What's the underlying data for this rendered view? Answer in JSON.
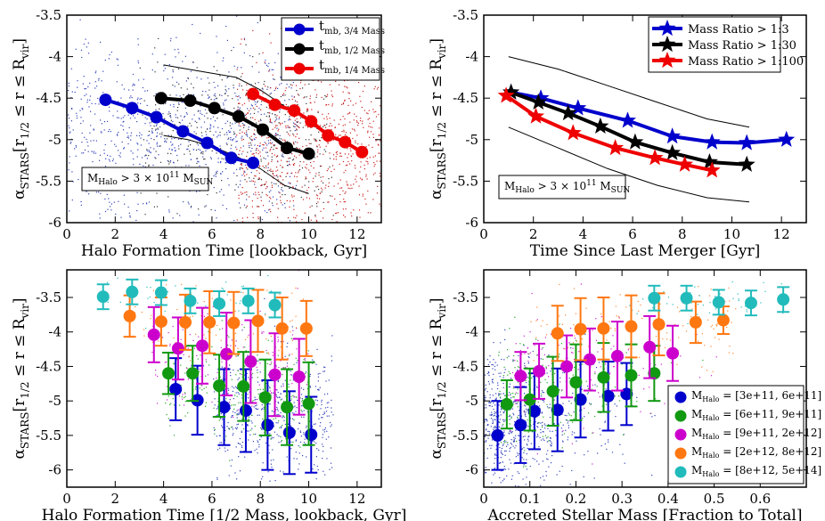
{
  "chart_data": [
    {
      "type": "scatter",
      "panel": "top-left",
      "xlabel": "Halo Formation Time [lookback, Gyr]",
      "ylabel_main": "α",
      "ylabel_sub": "STARS",
      "ylabel_rest": "[r",
      "ylabel_sub2": "1/2",
      "ylabel_mid": " ≤ r ≤ R",
      "ylabel_sub3": "vir",
      "ylabel_end": "]",
      "xlim": [
        0,
        13
      ],
      "ylim": [
        -6,
        -3.5
      ],
      "xticks": [
        "0",
        "2",
        "4",
        "6",
        "8",
        "10",
        "12"
      ],
      "yticks": [
        "-6",
        "-5.5",
        "-5",
        "-4.5",
        "-4",
        "-3.5"
      ],
      "annotation": {
        "main": "M",
        "sub": "Halo",
        "mid": " > 3 × 10",
        "sup": "11",
        "end": " M",
        "sub2": "SUN"
      },
      "series": [
        {
          "name": "t",
          "sub": "mb, 3/4 Mass",
          "color": "#0000cc",
          "x": [
            1.6,
            2.7,
            3.7,
            4.8,
            5.8,
            6.8,
            7.7
          ],
          "y": [
            -4.52,
            -4.62,
            -4.73,
            -4.9,
            -5.04,
            -5.22,
            -5.28
          ]
        },
        {
          "name": "t",
          "sub": "mb, 1/2 Mass",
          "color": "#000000",
          "x": [
            3.9,
            5.1,
            6.1,
            7.1,
            8.1,
            9.1,
            10.0
          ],
          "y": [
            -4.5,
            -4.53,
            -4.62,
            -4.72,
            -4.88,
            -5.1,
            -5.17
          ]
        },
        {
          "name": "t",
          "sub": "mb, 1/4 Mass",
          "color": "#ee0000",
          "x": [
            7.7,
            8.6,
            9.4,
            10.1,
            10.8,
            11.5,
            12.2
          ],
          "y": [
            -4.45,
            -4.58,
            -4.65,
            -4.78,
            -4.95,
            -5.03,
            -5.15
          ]
        }
      ],
      "envelope": [
        {
          "x": [
            4.0,
            5.0,
            6.0,
            7.0,
            8.0,
            9.0,
            10.0
          ],
          "y": [
            -4.1,
            -4.15,
            -4.2,
            -4.25,
            -4.4,
            -4.6,
            -4.75
          ]
        },
        {
          "x": [
            4.0,
            5.0,
            6.0,
            7.0,
            8.0,
            9.0,
            10.0
          ],
          "y": [
            -4.95,
            -5.0,
            -5.08,
            -5.2,
            -5.35,
            -5.55,
            -5.65
          ]
        }
      ]
    },
    {
      "type": "line",
      "panel": "top-right",
      "xlabel": "Time Since Last Merger [Gyr]",
      "xlim": [
        0,
        13
      ],
      "ylim": [
        -6,
        -3.5
      ],
      "xticks": [
        "0",
        "2",
        "4",
        "6",
        "8",
        "10",
        "12"
      ],
      "yticks": [
        "-6",
        "-5.5",
        "-5",
        "-4.5",
        "-4",
        "-3.5"
      ],
      "annotation": {
        "main": "M",
        "sub": "Halo",
        "mid": " > 3 × 10",
        "sup": "11",
        "end": " M",
        "sub2": "SUN"
      },
      "series": [
        {
          "name": "Mass Ratio > 1:3",
          "color": "#0000cc",
          "x": [
            1.1,
            2.3,
            3.8,
            5.8,
            7.6,
            9.2,
            10.6,
            12.2
          ],
          "y": [
            -4.43,
            -4.5,
            -4.62,
            -4.77,
            -4.96,
            -5.03,
            -5.04,
            -5.0
          ]
        },
        {
          "name": "Mass Ratio > 1:30",
          "color": "#000000",
          "x": [
            1.1,
            2.2,
            3.4,
            4.7,
            6.1,
            7.6,
            9.1,
            10.6
          ],
          "y": [
            -4.43,
            -4.55,
            -4.68,
            -4.84,
            -5.03,
            -5.16,
            -5.27,
            -5.3
          ]
        },
        {
          "name": "Mass Ratio > 1:100",
          "color": "#ee0000",
          "x": [
            0.9,
            2.1,
            3.6,
            5.3,
            6.9,
            8.1,
            9.2
          ],
          "y": [
            -4.47,
            -4.72,
            -4.92,
            -5.1,
            -5.22,
            -5.3,
            -5.37
          ]
        }
      ],
      "envelope": [
        {
          "x": [
            1.0,
            3.0,
            5.0,
            7.0,
            9.0,
            10.7
          ],
          "y": [
            -4.0,
            -4.15,
            -4.35,
            -4.55,
            -4.75,
            -4.85
          ]
        },
        {
          "x": [
            1.0,
            3.0,
            5.0,
            7.0,
            9.0,
            10.7
          ],
          "y": [
            -4.85,
            -5.1,
            -5.35,
            -5.55,
            -5.7,
            -5.75
          ]
        }
      ]
    },
    {
      "type": "scatter",
      "panel": "bottom-left",
      "xlabel": "Halo Formation Time [1/2 Mass, lookback, Gyr]",
      "xlim": [
        0,
        13
      ],
      "ylim": [
        -6.25,
        -3.1
      ],
      "xticks": [
        "0",
        "2",
        "4",
        "6",
        "8",
        "10",
        "12"
      ],
      "yticks": [
        "-6",
        "-5.5",
        "-5",
        "-4.5",
        "-4",
        "-3.5"
      ],
      "series": [
        {
          "name": "[3e+11, 6e+11]",
          "color": "#0000cc",
          "x": [
            4.5,
            5.4,
            6.5,
            7.4,
            8.3,
            9.2,
            10.1
          ],
          "y": [
            -4.83,
            -4.99,
            -5.09,
            -5.14,
            -5.35,
            -5.46,
            -5.49
          ],
          "err": [
            0.45,
            0.5,
            0.55,
            0.6,
            0.65,
            0.6,
            0.55
          ]
        },
        {
          "name": "[6e+11, 9e+11]",
          "color": "#119911",
          "x": [
            4.2,
            5.2,
            6.3,
            7.3,
            8.2,
            9.1,
            10.0
          ],
          "y": [
            -4.6,
            -4.6,
            -4.78,
            -4.79,
            -4.95,
            -5.09,
            -5.04
          ],
          "err": [
            0.3,
            0.4,
            0.45,
            0.5,
            0.55,
            0.55,
            0.6
          ]
        },
        {
          "name": "[9e+11, 2e+12]",
          "color": "#cc00cc",
          "x": [
            3.6,
            4.6,
            5.6,
            6.6,
            7.6,
            8.6,
            9.6
          ],
          "y": [
            -4.04,
            -4.24,
            -4.2,
            -4.32,
            -4.43,
            -4.62,
            -4.65
          ],
          "err": [
            0.4,
            0.45,
            0.55,
            0.6,
            0.6,
            0.6,
            0.55
          ]
        },
        {
          "name": "[2e+12, 8e+12]",
          "color": "#ff7711",
          "x": [
            2.6,
            3.9,
            4.9,
            5.9,
            6.9,
            7.9,
            8.9,
            9.9
          ],
          "y": [
            -3.77,
            -3.85,
            -3.86,
            -3.86,
            -3.87,
            -3.84,
            -3.95,
            -3.95
          ],
          "err": [
            0.3,
            0.35,
            0.4,
            0.45,
            0.45,
            0.45,
            0.45,
            0.4
          ]
        },
        {
          "name": "[8e+12, 5e+14]",
          "color": "#22bbbb",
          "x": [
            1.5,
            2.7,
            3.9,
            5.1,
            6.3,
            7.5,
            8.6
          ],
          "y": [
            -3.49,
            -3.42,
            -3.43,
            -3.55,
            -3.59,
            -3.55,
            -3.61
          ],
          "err": [
            0.18,
            0.18,
            0.18,
            0.18,
            0.18,
            0.18,
            0.18
          ]
        }
      ]
    },
    {
      "type": "scatter",
      "panel": "bottom-right",
      "xlabel": "Accreted Stellar Mass [Fraction to Total]",
      "xlim": [
        0,
        0.7
      ],
      "ylim": [
        -6.25,
        -3.1
      ],
      "xticks": [
        "0",
        "0.1",
        "0.2",
        "0.3",
        "0.4",
        "0.5",
        "0.6"
      ],
      "yticks": [
        "-6",
        "-5.5",
        "-5",
        "-4.5",
        "-4",
        "-3.5"
      ],
      "legend_prefix": "M",
      "legend_sub": "Halo",
      "legend_eq": " = ",
      "series": [
        {
          "name": "[3e+11, 6e+11]",
          "color": "#0000cc",
          "x": [
            0.03,
            0.08,
            0.11,
            0.16,
            0.21,
            0.27,
            0.31
          ],
          "y": [
            -5.5,
            -5.35,
            -5.15,
            -5.13,
            -4.98,
            -4.93,
            -4.9
          ],
          "err": [
            0.5,
            0.55,
            0.55,
            0.6,
            0.55,
            0.5,
            0.45
          ]
        },
        {
          "name": "[6e+11, 9e+11]",
          "color": "#119911",
          "x": [
            0.05,
            0.1,
            0.15,
            0.2,
            0.26,
            0.32,
            0.37
          ],
          "y": [
            -5.05,
            -4.98,
            -4.86,
            -4.73,
            -4.66,
            -4.63,
            -4.6
          ],
          "err": [
            0.35,
            0.45,
            0.5,
            0.55,
            0.5,
            0.45,
            0.4
          ]
        },
        {
          "name": "[9e+11, 2e+12]",
          "color": "#cc00cc",
          "x": [
            0.08,
            0.12,
            0.18,
            0.23,
            0.29,
            0.36,
            0.41
          ],
          "y": [
            -4.64,
            -4.57,
            -4.5,
            -4.4,
            -4.35,
            -4.22,
            -4.31
          ],
          "err": [
            0.35,
            0.4,
            0.45,
            0.45,
            0.5,
            0.45,
            0.4
          ]
        },
        {
          "name": "[2e+12, 8e+12]",
          "color": "#ff7711",
          "x": [
            0.16,
            0.21,
            0.26,
            0.32,
            0.38,
            0.46,
            0.52
          ],
          "y": [
            -4.02,
            -3.96,
            -3.95,
            -3.92,
            -3.89,
            -3.86,
            -3.83
          ],
          "err": [
            0.4,
            0.45,
            0.45,
            0.45,
            0.45,
            0.3,
            0.2
          ]
        },
        {
          "name": "[8e+12, 5e+14]",
          "color": "#22bbbb",
          "x": [
            0.37,
            0.44,
            0.51,
            0.58,
            0.65
          ],
          "y": [
            -3.51,
            -3.51,
            -3.57,
            -3.58,
            -3.53
          ],
          "err": [
            0.18,
            0.18,
            0.18,
            0.18,
            0.18
          ]
        }
      ]
    }
  ]
}
